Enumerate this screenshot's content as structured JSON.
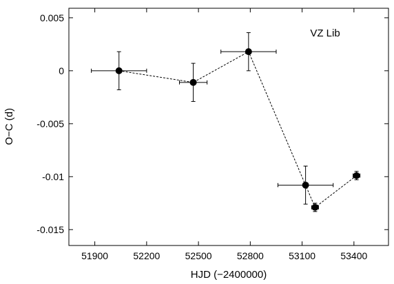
{
  "chart_data": {
    "type": "scatter",
    "title": "",
    "xlabel": "HJD (−2400000)",
    "ylabel": "O−C (d)",
    "annotation": "VZ Lib",
    "xlim": [
      51750,
      53600
    ],
    "ylim": [
      -0.0165,
      0.0059
    ],
    "x_ticks": [
      51900,
      52200,
      52500,
      52800,
      53100,
      53400
    ],
    "x_tick_labels": [
      "51900",
      "52200",
      "52500",
      "52800",
      "53100",
      "53400"
    ],
    "y_ticks": [
      0.005,
      0,
      -0.005,
      -0.01,
      -0.015
    ],
    "y_tick_labels": [
      "0.005",
      "0",
      "-0.005",
      "-0.01",
      "-0.015"
    ],
    "grid": false,
    "connected": true,
    "line_style": "dashed",
    "marker": "filled-circle",
    "color": "#000000",
    "points": [
      {
        "x": 52040,
        "y": 0.0,
        "xerr": 160,
        "yerr": 0.0018
      },
      {
        "x": 52470,
        "y": -0.0011,
        "xerr": 80,
        "yerr": 0.0018
      },
      {
        "x": 52790,
        "y": 0.0018,
        "xerr": 160,
        "yerr": 0.0018
      },
      {
        "x": 53120,
        "y": -0.0108,
        "xerr": 160,
        "yerr": 0.0018
      },
      {
        "x": 53175,
        "y": -0.0129,
        "xerr": 20,
        "yerr": 0.0004
      },
      {
        "x": 53415,
        "y": -0.0099,
        "xerr": 20,
        "yerr": 0.0004
      }
    ]
  }
}
